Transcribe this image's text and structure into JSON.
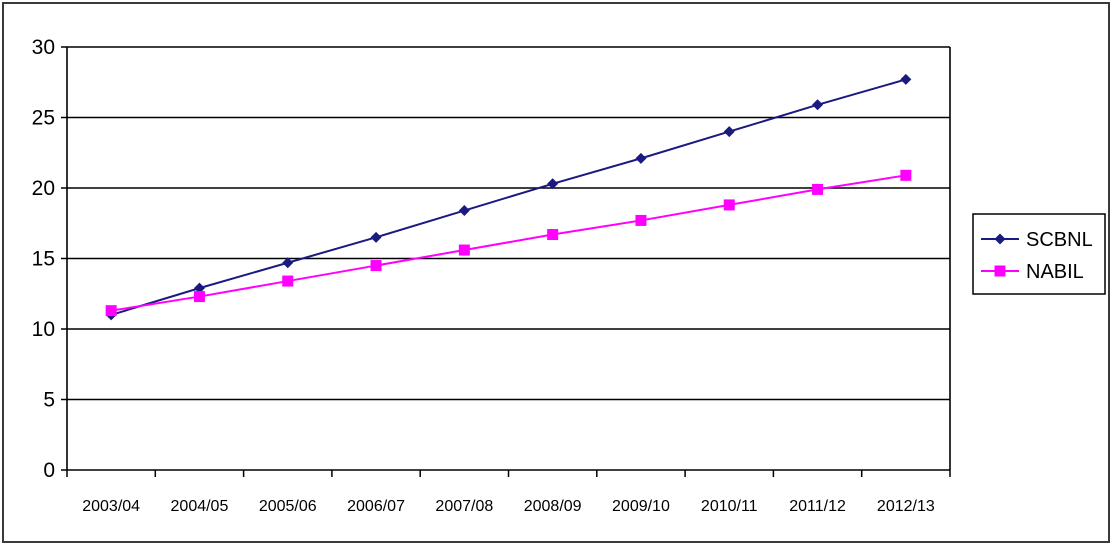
{
  "chart_data": {
    "type": "line",
    "categories": [
      "2003/04",
      "2004/05",
      "2005/06",
      "2006/07",
      "2007/08",
      "2008/09",
      "2009/10",
      "2010/11",
      "2011/12",
      "2012/13"
    ],
    "series": [
      {
        "name": "SCBNL",
        "color": "#1a1a80",
        "marker": "diamond",
        "values": [
          11.0,
          12.9,
          14.7,
          16.5,
          18.4,
          20.3,
          22.1,
          24.0,
          25.9,
          27.7
        ]
      },
      {
        "name": "NABIL",
        "color": "#ff00ff",
        "marker": "square",
        "values": [
          11.3,
          12.3,
          13.4,
          14.5,
          15.6,
          16.7,
          17.7,
          18.8,
          19.9,
          20.9
        ]
      }
    ],
    "yticks": [
      "0",
      "5",
      "10",
      "15",
      "20",
      "25",
      "30"
    ],
    "ylim": [
      0,
      30
    ],
    "grid": true,
    "legend_position": "right",
    "title": "",
    "xlabel": "",
    "ylabel": ""
  }
}
